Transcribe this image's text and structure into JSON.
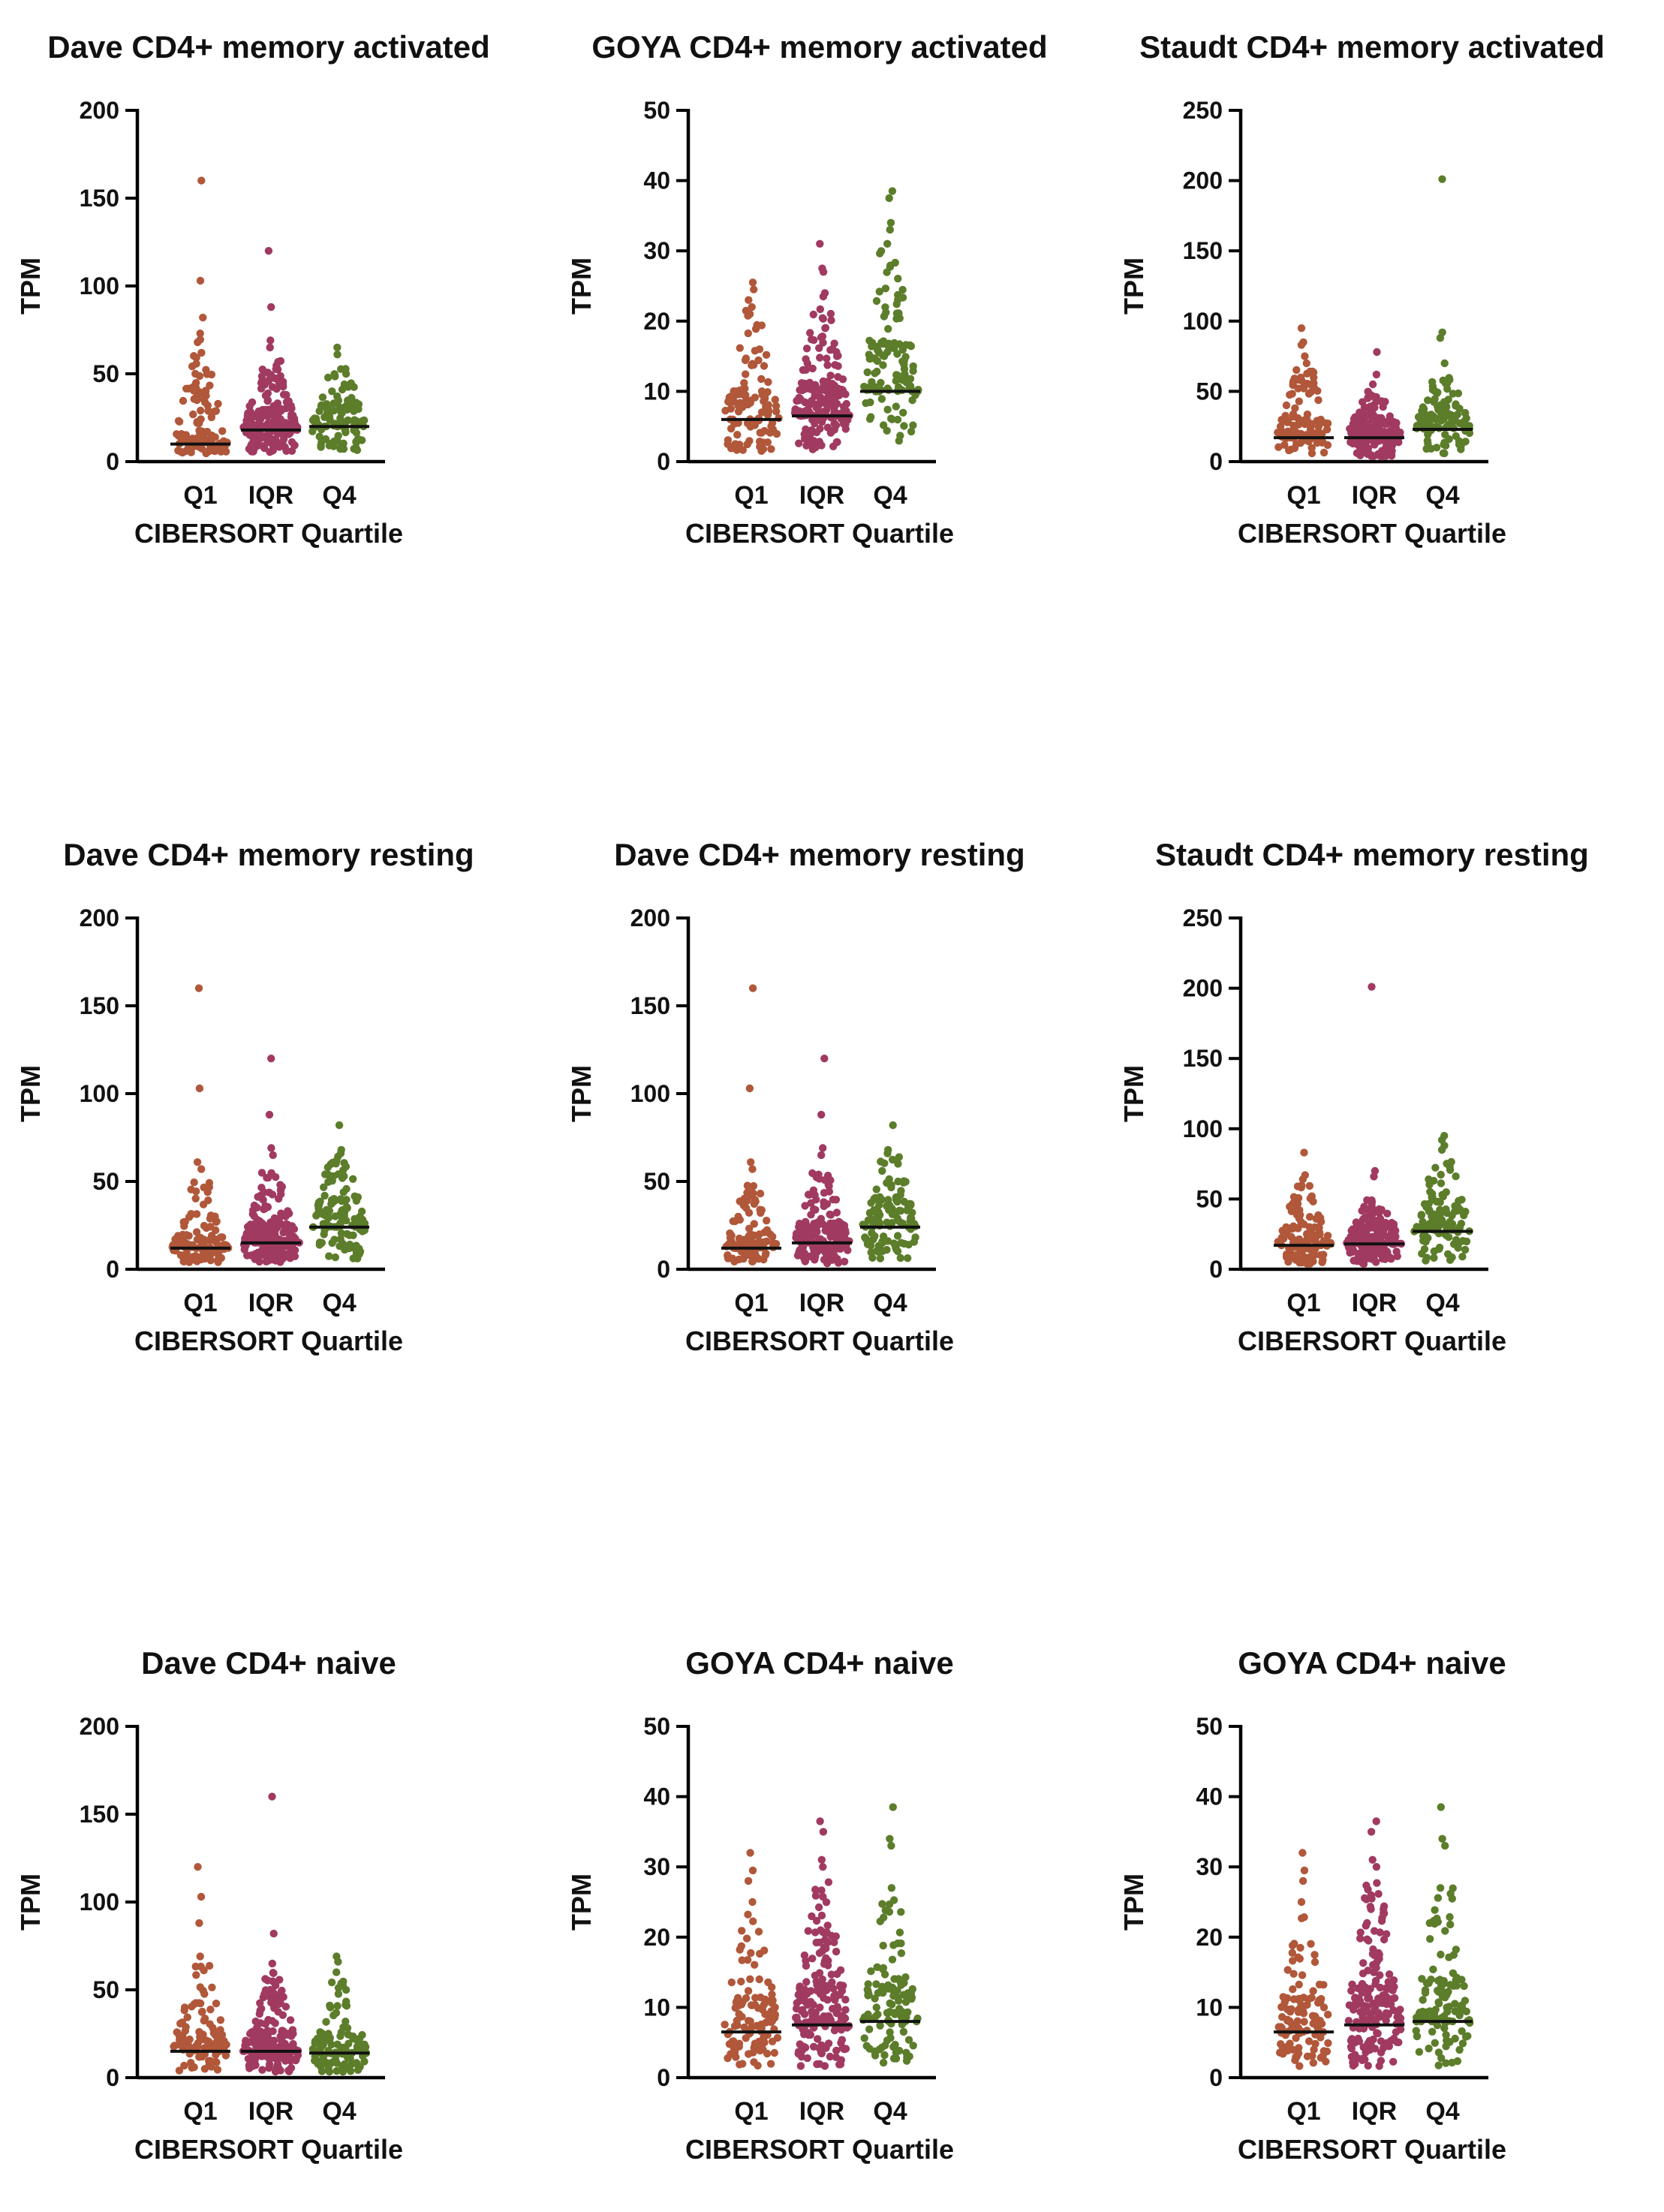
{
  "figure": {
    "y_axis_label": "TPM",
    "x_axis_label": "CIBERSORT Quartile",
    "categories": [
      "Q1",
      "IQR",
      "Q4"
    ],
    "colors": {
      "Q1": "#b1573a",
      "IQR": "#a13a60",
      "Q4": "#5c7d2a"
    }
  },
  "chart_data": [
    {
      "type": "scatter",
      "title": "Dave CD4+ memory activated",
      "xlabel": "CIBERSORT Quartile",
      "ylabel": "TPM",
      "categories": [
        "Q1",
        "IQR",
        "Q4"
      ],
      "ylim": [
        0,
        200
      ],
      "yticks": [
        0,
        50,
        100,
        150,
        200
      ],
      "medians": [
        10,
        18,
        20
      ],
      "n": [
        110,
        180,
        115
      ],
      "outliers": [
        [
          160,
          103,
          82,
          73,
          68,
          62
        ],
        [
          120,
          88,
          69,
          65
        ],
        [
          65,
          61
        ]
      ],
      "spread": [
        [
          4,
          70
        ],
        [
          4,
          60
        ],
        [
          5,
          55
        ]
      ]
    },
    {
      "type": "scatter",
      "title": "GOYA CD4+ memory activated",
      "xlabel": "CIBERSORT Quartile",
      "ylabel": "TPM",
      "categories": [
        "Q1",
        "IQR",
        "Q4"
      ],
      "ylim": [
        0,
        50
      ],
      "yticks": [
        0,
        10,
        20,
        30,
        40,
        50
      ],
      "medians": [
        6,
        6.5,
        10
      ],
      "n": [
        110,
        180,
        115
      ],
      "outliers": [
        [
          25.5,
          24.5,
          23,
          22,
          21
        ],
        [
          31,
          27.5,
          27,
          24,
          23.5
        ],
        [
          38.5,
          37.5,
          34,
          33,
          31
        ]
      ],
      "spread": [
        [
          1,
          22
        ],
        [
          1,
          22
        ],
        [
          2,
          30
        ]
      ]
    },
    {
      "type": "scatter",
      "title": "Staudt CD4+ memory activated",
      "xlabel": "CIBERSORT Quartile",
      "ylabel": "TPM",
      "categories": [
        "Q1",
        "IQR",
        "Q4"
      ],
      "ylim": [
        0,
        250
      ],
      "yticks": [
        0,
        50,
        100,
        150,
        200,
        250
      ],
      "medians": [
        17,
        17,
        23
      ],
      "n": [
        110,
        180,
        115
      ],
      "outliers": [
        [
          95,
          85,
          83,
          75,
          70
        ],
        [
          78,
          62,
          55
        ],
        [
          201,
          92,
          88,
          70
        ]
      ],
      "spread": [
        [
          2,
          68
        ],
        [
          2,
          50
        ],
        [
          2,
          60
        ]
      ]
    },
    {
      "type": "scatter",
      "title": "Dave CD4+ memory resting",
      "xlabel": "CIBERSORT Quartile",
      "ylabel": "TPM",
      "categories": [
        "Q1",
        "IQR",
        "Q4"
      ],
      "ylim": [
        0,
        200
      ],
      "yticks": [
        0,
        50,
        100,
        150,
        200
      ],
      "medians": [
        12,
        15,
        24
      ],
      "n": [
        110,
        180,
        115
      ],
      "outliers": [
        [
          160,
          103,
          61,
          57
        ],
        [
          120,
          88,
          69,
          65
        ],
        [
          82,
          68,
          66
        ]
      ],
      "spread": [
        [
          3,
          50
        ],
        [
          2,
          55
        ],
        [
          4,
          65
        ]
      ]
    },
    {
      "type": "scatter",
      "title": "Dave CD4+ memory resting",
      "xlabel": "CIBERSORT Quartile",
      "ylabel": "TPM",
      "categories": [
        "Q1",
        "IQR",
        "Q4"
      ],
      "ylim": [
        0,
        200
      ],
      "yticks": [
        0,
        50,
        100,
        150,
        200
      ],
      "medians": [
        12,
        15,
        24
      ],
      "n": [
        110,
        180,
        115
      ],
      "outliers": [
        [
          160,
          103,
          61,
          57
        ],
        [
          120,
          88,
          69,
          65
        ],
        [
          82,
          68,
          66
        ]
      ],
      "spread": [
        [
          3,
          50
        ],
        [
          2,
          55
        ],
        [
          4,
          65
        ]
      ]
    },
    {
      "type": "scatter",
      "title": "Staudt CD4+ memory resting",
      "xlabel": "CIBERSORT Quartile",
      "ylabel": "TPM",
      "categories": [
        "Q1",
        "IQR",
        "Q4"
      ],
      "ylim": [
        0,
        250
      ],
      "yticks": [
        0,
        50,
        100,
        150,
        200,
        250
      ],
      "medians": [
        17,
        18,
        27
      ],
      "n": [
        110,
        180,
        115
      ],
      "outliers": [
        [
          83,
          67,
          64
        ],
        [
          201,
          70,
          66
        ],
        [
          95,
          92,
          88,
          85
        ]
      ],
      "spread": [
        [
          2,
          60
        ],
        [
          2,
          50
        ],
        [
          3,
          80
        ]
      ]
    },
    {
      "type": "scatter",
      "title": "Dave CD4+ naive",
      "xlabel": "CIBERSORT Quartile",
      "ylabel": "TPM",
      "categories": [
        "Q1",
        "IQR",
        "Q4"
      ],
      "ylim": [
        0,
        200
      ],
      "yticks": [
        0,
        50,
        100,
        150,
        200
      ],
      "medians": [
        15,
        15,
        14
      ],
      "n": [
        110,
        180,
        115
      ],
      "outliers": [
        [
          120,
          103,
          88,
          69
        ],
        [
          160,
          82,
          65
        ],
        [
          69,
          66,
          60
        ]
      ],
      "spread": [
        [
          2,
          65
        ],
        [
          2,
          60
        ],
        [
          2,
          55
        ]
      ]
    },
    {
      "type": "scatter",
      "title": "GOYA CD4+ naive",
      "xlabel": "CIBERSORT Quartile",
      "ylabel": "TPM",
      "categories": [
        "Q1",
        "IQR",
        "Q4"
      ],
      "ylim": [
        0,
        50
      ],
      "yticks": [
        0,
        10,
        20,
        30,
        40,
        50
      ],
      "medians": [
        6.5,
        7.5,
        8
      ],
      "n": [
        110,
        180,
        115
      ],
      "outliers": [
        [
          32,
          29.5,
          28,
          25
        ],
        [
          36.5,
          35,
          31,
          30
        ],
        [
          38.5,
          34,
          33,
          27
        ]
      ],
      "spread": [
        [
          1,
          24
        ],
        [
          1,
          28
        ],
        [
          1,
          27
        ]
      ]
    },
    {
      "type": "scatter",
      "title": "GOYA CD4+ naive",
      "xlabel": "CIBERSORT Quartile",
      "ylabel": "TPM",
      "categories": [
        "Q1",
        "IQR",
        "Q4"
      ],
      "ylim": [
        0,
        50
      ],
      "yticks": [
        0,
        10,
        20,
        30,
        40,
        50
      ],
      "medians": [
        6.5,
        7.5,
        8
      ],
      "n": [
        110,
        180,
        115
      ],
      "outliers": [
        [
          32,
          29.5,
          28,
          25
        ],
        [
          36.5,
          35,
          31,
          30
        ],
        [
          38.5,
          34,
          33,
          27
        ]
      ],
      "spread": [
        [
          1,
          24
        ],
        [
          1,
          28
        ],
        [
          1,
          27
        ]
      ]
    }
  ]
}
